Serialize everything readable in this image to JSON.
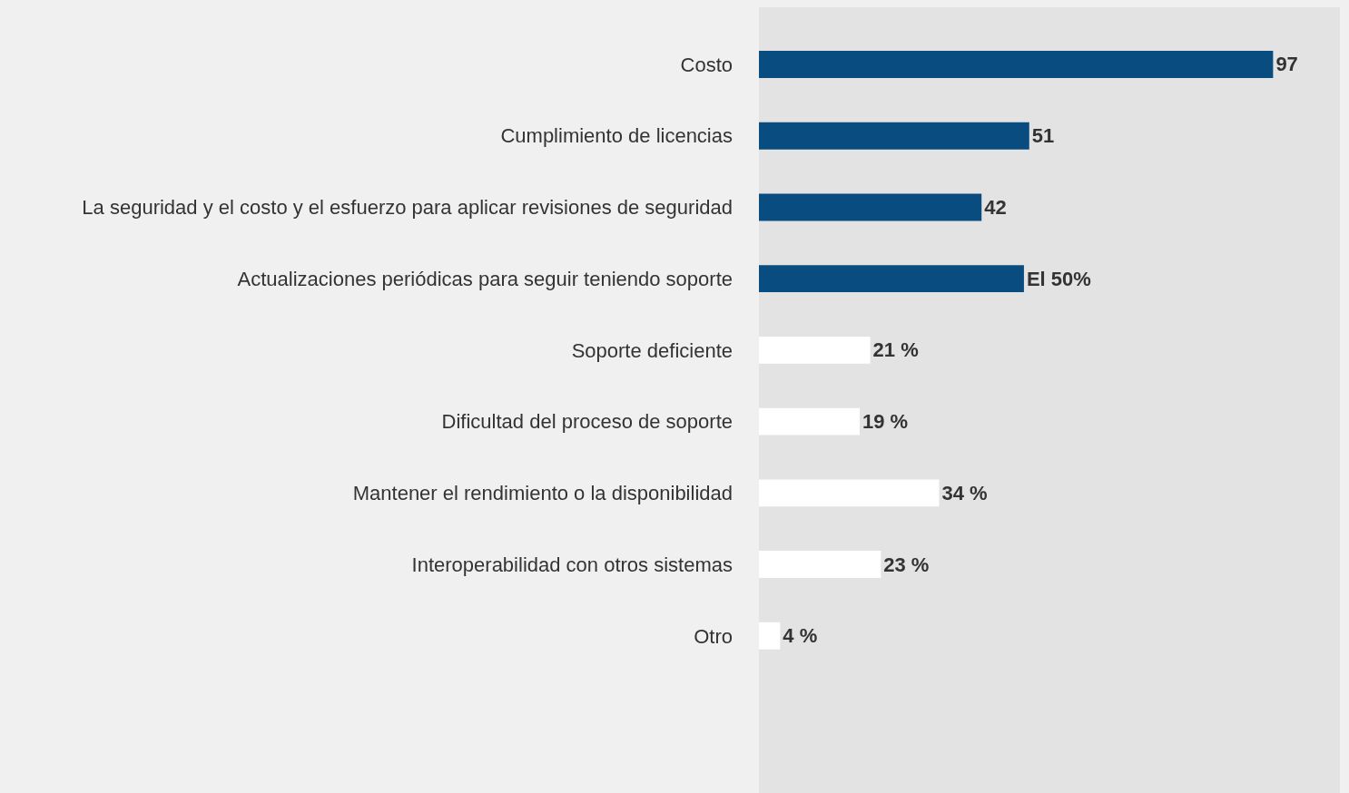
{
  "chart_data": {
    "type": "bar",
    "orientation": "horizontal",
    "categories": [
      "Costo",
      "Cumplimiento de licencias",
      "La seguridad y el costo y el esfuerzo para aplicar revisiones de seguridad",
      "Actualizaciones periódicas para seguir teniendo soporte",
      "Soporte deficiente",
      "Dificultad del proceso de soporte",
      "Mantener el rendimiento o la disponibilidad",
      "Interoperabilidad con otros sistemas",
      "Otro"
    ],
    "values": [
      97,
      51,
      42,
      50,
      21,
      19,
      34,
      23,
      4
    ],
    "colors": [
      "#094c80",
      "#094c80",
      "#094c80",
      "#094c80",
      "#ffffff",
      "#ffffff",
      "#ffffff",
      "#ffffff",
      "#ffffff"
    ],
    "value_labels": [
      "97",
      "51",
      "42",
      "El 50%",
      "21 %",
      "19 %",
      "34 %",
      "23 %",
      "4 %"
    ],
    "grid": false,
    "legend": false
  }
}
